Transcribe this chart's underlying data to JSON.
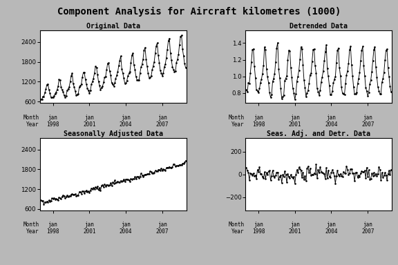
{
  "title": "Component Analysis for Aircraft kilometres (1000)",
  "background_color": "#b8b8b8",
  "plot_bg": "#ffffff",
  "n_months": 144,
  "subplots": [
    {
      "title": "Original Data",
      "ylim": [
        550,
        2750
      ],
      "yticks": [
        600,
        1200,
        1800,
        2400
      ]
    },
    {
      "title": "Detrended Data",
      "ylim": [
        0.68,
        1.55
      ],
      "yticks": [
        0.8,
        1.0,
        1.2,
        1.4
      ]
    },
    {
      "title": "Seasonally Adjusted Data",
      "ylim": [
        550,
        2750
      ],
      "yticks": [
        600,
        1200,
        1800,
        2400
      ]
    },
    {
      "title": "Seas. Adj. and Detr. Data",
      "ylim": [
        -320,
        320
      ],
      "yticks": [
        -200,
        0,
        200
      ]
    }
  ],
  "xtick_month_labels": [
    "jan",
    "jan",
    "jan",
    "jan"
  ],
  "xtick_year_labels": [
    "1998",
    "2001",
    "2004",
    "2007"
  ]
}
